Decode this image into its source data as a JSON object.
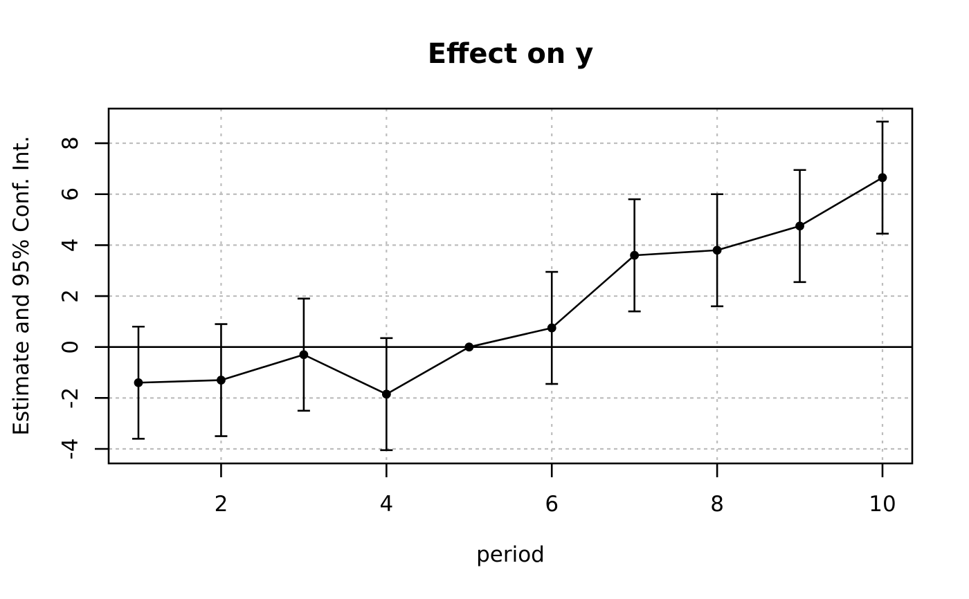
{
  "chart_data": {
    "type": "line",
    "title": "Effect on y",
    "xlabel": "period",
    "ylabel": "Estimate and 95% Conf. Int.",
    "x": [
      1,
      2,
      3,
      4,
      5,
      6,
      7,
      8,
      9,
      10
    ],
    "series": [
      {
        "name": "estimate",
        "values": [
          -1.4,
          -1.3,
          -0.3,
          -1.85,
          0,
          0.75,
          3.6,
          3.8,
          4.75,
          6.65
        ]
      }
    ],
    "ci_lower": [
      -3.6,
      -3.5,
      -2.5,
      -4.05,
      0,
      -1.45,
      1.4,
      1.6,
      2.55,
      4.45
    ],
    "ci_upper": [
      0.8,
      0.9,
      1.9,
      0.35,
      0,
      2.95,
      5.8,
      6.0,
      6.95,
      8.85
    ],
    "x_ticks": [
      2,
      4,
      6,
      8,
      10
    ],
    "y_ticks": [
      -4,
      -2,
      0,
      2,
      4,
      6,
      8
    ],
    "xlim": [
      0.64,
      10.36
    ],
    "ylim": [
      -4.57,
      9.36
    ],
    "grid": true,
    "zero_line_y": 0,
    "legend_position": "none",
    "marker": "filled-circle",
    "colors": {
      "series": "#000000",
      "grid": "#bdbdbd",
      "axis": "#000000",
      "background": "#ffffff"
    }
  }
}
